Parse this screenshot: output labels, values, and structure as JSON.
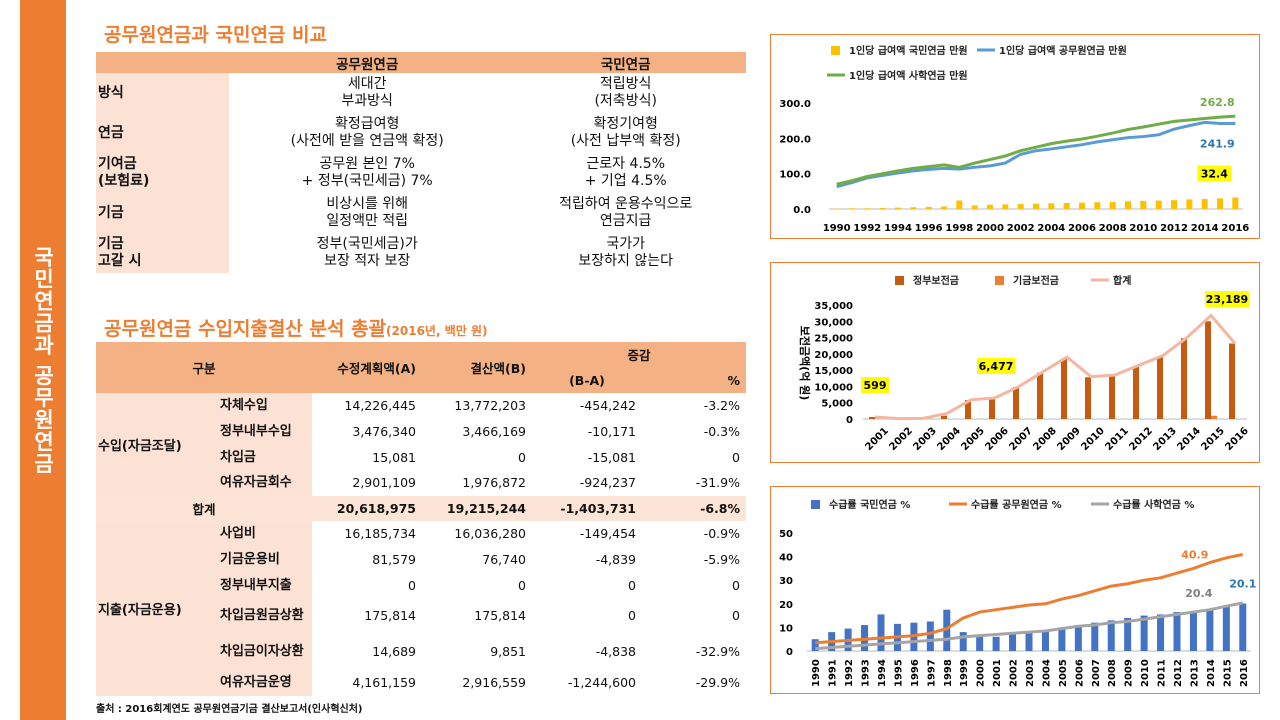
{
  "side_title": "국민연금과 공무원연금",
  "comparison": {
    "title": "공무원연금과 국민연금 비교",
    "col_headers": [
      "공무원연금",
      "국민연금"
    ],
    "rows": [
      {
        "label": "방식",
        "gov": "세대간\n부과방식",
        "nat": "적립방식\n(저축방식)"
      },
      {
        "label": "연금",
        "gov": "확정급여형\n(사전에 받을 연금액 확정)",
        "nat": "확정기여형\n(사전 납부액 확정)"
      },
      {
        "label": "기여금\n(보험료)",
        "gov": "공무원 본인 7%\n+ 정부(국민세금) 7%",
        "nat": "근로자 4.5%\n+ 기업 4.5%"
      },
      {
        "label": "기금",
        "gov": "비상시를 위해\n일정액만 적립",
        "nat": "적립하여 운용수익으로\n연금지급"
      },
      {
        "label": "기금\n고갈 시",
        "gov": "정부(국민세금)가\n보장 적자 보장",
        "nat": "국가가\n보장하지 않는다"
      }
    ]
  },
  "finance": {
    "title": "공무원연금 수입지출결산 분석 총괄",
    "title_note": "(2016년, 백만 원)",
    "headers": {
      "category": "구분",
      "planned": "수정계획액(A)",
      "actual": "결산액(B)",
      "change": "증감",
      "diff": "(B-A)",
      "pct": "%"
    },
    "income_group": "수입(자금조달)",
    "income": [
      {
        "name": "자체수입",
        "a": "14,226,445",
        "b": "13,772,203",
        "d": "-454,242",
        "p": "-3.2%"
      },
      {
        "name": "정부내부수입",
        "a": "3,476,340",
        "b": "3,466,169",
        "d": "-10,171",
        "p": "-0.3%"
      },
      {
        "name": "차입금",
        "a": "15,081",
        "b": "0",
        "d": "-15,081",
        "p": "0"
      },
      {
        "name": "여유자금회수",
        "a": "2,901,109",
        "b": "1,976,872",
        "d": "-924,237",
        "p": "-31.9%"
      }
    ],
    "total": {
      "name": "합계",
      "a": "20,618,975",
      "b": "19,215,244",
      "d": "-1,403,731",
      "p": "-6.8%"
    },
    "expense_group": "지출(자금운용)",
    "expense": [
      {
        "name": "사업비",
        "a": "16,185,734",
        "b": "16,036,280",
        "d": "-149,454",
        "p": "-0.9%"
      },
      {
        "name": "기금운용비",
        "a": "81,579",
        "b": "76,740",
        "d": "-4,839",
        "p": "-5.9%"
      },
      {
        "name": "정부내부지출",
        "a": "0",
        "b": "0",
        "d": "0",
        "p": "0"
      },
      {
        "name": "차입금원금상환",
        "a": "175,814",
        "b": "175,814",
        "d": "0",
        "p": "0"
      },
      {
        "name": "차입금이자상환",
        "a": "14,689",
        "b": "9,851",
        "d": "-4,838",
        "p": "-32.9%"
      },
      {
        "name": "여유자금운영",
        "a": "4,161,159",
        "b": "2,916,559",
        "d": "-1,244,600",
        "p": "-29.9%"
      }
    ],
    "source": "출처 : 2016회계연도 공무원연금기금 결산보고서(인사혁신처)"
  },
  "chart_data": [
    {
      "type": "bar+line",
      "title": "",
      "x": [
        1990,
        1991,
        1992,
        1993,
        1994,
        1995,
        1996,
        1997,
        1998,
        1999,
        2000,
        2001,
        2002,
        2003,
        2004,
        2005,
        2006,
        2007,
        2008,
        2009,
        2010,
        2011,
        2012,
        2013,
        2014,
        2015,
        2016
      ],
      "series": [
        {
          "name": "1인당 급여액 국민연금 만원",
          "kind": "bar",
          "color": "#ffc000",
          "values": [
            1,
            2,
            2,
            3,
            4,
            5,
            6,
            7,
            24,
            10,
            12,
            13,
            14,
            15,
            16,
            17,
            18,
            19,
            20,
            22,
            23,
            24,
            25,
            27,
            28,
            30,
            32.4
          ]
        },
        {
          "name": "1인당 급여액 공무원연금 만원",
          "kind": "line",
          "color": "#5b9bd5",
          "values": [
            63,
            75,
            88,
            95,
            102,
            108,
            112,
            115,
            113,
            118,
            122,
            130,
            155,
            165,
            170,
            176,
            182,
            190,
            196,
            202,
            205,
            210,
            226,
            236,
            245,
            242,
            241.9
          ]
        },
        {
          "name": "1인당 급여액 사학연금 만원",
          "kind": "line",
          "color": "#70ad47",
          "values": [
            70,
            80,
            92,
            100,
            108,
            115,
            120,
            125,
            118,
            130,
            140,
            150,
            165,
            175,
            185,
            192,
            198,
            206,
            215,
            225,
            232,
            240,
            248,
            252,
            256,
            260,
            262.8
          ]
        }
      ],
      "ylim": [
        0,
        300
      ],
      "yticks": [
        "300.0",
        "200.0",
        "100.0",
        "0.0"
      ],
      "xtick_labels": [
        "1990",
        "1992",
        "1994",
        "1996",
        "1998",
        "2000",
        "2002",
        "2004",
        "2006",
        "2008",
        "2010",
        "2012",
        "2014",
        "2016"
      ],
      "labels": {
        "gov": "241.9",
        "private": "262.8",
        "nat": "32.4"
      }
    },
    {
      "type": "bar+line",
      "ylabel": "보전금액(억 원)",
      "x": [
        "2001",
        "2002",
        "2003",
        "2004",
        "2005",
        "2006",
        "2007",
        "2008",
        "2009",
        "2010",
        "2011",
        "2012",
        "2013",
        "2014",
        "2015",
        "2016"
      ],
      "series": [
        {
          "name": "정부보전금",
          "kind": "bar",
          "color": "#c55a11",
          "values": [
            599,
            0,
            0,
            1000,
            5800,
            6400,
            9800,
            14200,
            18500,
            12800,
            13200,
            16000,
            19000,
            24800,
            30000,
            23189
          ]
        },
        {
          "name": "기금보전금",
          "kind": "bar",
          "color": "#ed7d31",
          "values": [
            0,
            0,
            0,
            0,
            0,
            0,
            0,
            0,
            0,
            0,
            0,
            0,
            0,
            0,
            1000,
            0
          ]
        },
        {
          "name": "합계",
          "kind": "line",
          "color": "#f4b6a0",
          "values": [
            599,
            100,
            200,
            1700,
            5900,
            6477,
            10000,
            14500,
            19000,
            13000,
            13500,
            16500,
            19500,
            25000,
            31800,
            23189
          ]
        }
      ],
      "ylim": [
        0,
        35000
      ],
      "yticks": [
        "35,000",
        "30,000",
        "25,000",
        "20,000",
        "15,000",
        "10,000",
        "5,000",
        "0"
      ],
      "labels": {
        "first": "599",
        "mid": "6,477",
        "last": "23,189"
      }
    },
    {
      "type": "bar+line",
      "x": [
        "1990",
        "1991",
        "1992",
        "1993",
        "1994",
        "1995",
        "1996",
        "1997",
        "1998",
        "1999",
        "2000",
        "2001",
        "2002",
        "2003",
        "2004",
        "2005",
        "2006",
        "2007",
        "2008",
        "2009",
        "2010",
        "2011",
        "2012",
        "2013",
        "2014",
        "2015",
        "2016"
      ],
      "series": [
        {
          "name": "수급률 국민연금 %",
          "kind": "bar",
          "color": "#4472c4",
          "values": [
            5,
            8,
            9.5,
            11,
            15.5,
            11.5,
            12,
            12.5,
            17.5,
            8,
            7,
            6,
            7,
            7.5,
            8.5,
            10,
            11,
            12,
            13,
            14,
            15,
            15.5,
            16.5,
            17,
            17.5,
            19,
            20.1
          ]
        },
        {
          "name": "수급률 공무원연금 %",
          "kind": "line",
          "color": "#ed7d31",
          "values": [
            3.5,
            4,
            4.5,
            5,
            5.5,
            6,
            6.5,
            7.5,
            9.5,
            14,
            16.5,
            17.5,
            18.5,
            19.5,
            20,
            22,
            23.5,
            25.5,
            27.5,
            28.5,
            30,
            31,
            33,
            35,
            37.5,
            39.5,
            40.9
          ]
        },
        {
          "name": "수급률 사학연금 %",
          "kind": "line",
          "color": "#a5a5a5",
          "values": [
            1,
            1.5,
            2,
            2.5,
            3,
            3.5,
            4,
            4.5,
            5,
            6,
            6.5,
            7,
            7.5,
            8,
            8.5,
            9.5,
            10.5,
            11,
            12,
            12.5,
            13.5,
            14.5,
            15.5,
            16.5,
            17.5,
            19,
            20.4
          ]
        }
      ],
      "ylim": [
        0,
        50
      ],
      "yticks": [
        "50",
        "40",
        "30",
        "20",
        "10",
        "0"
      ],
      "labels": {
        "gov": "40.9",
        "private": "20.4",
        "nat": "20.1"
      }
    }
  ]
}
